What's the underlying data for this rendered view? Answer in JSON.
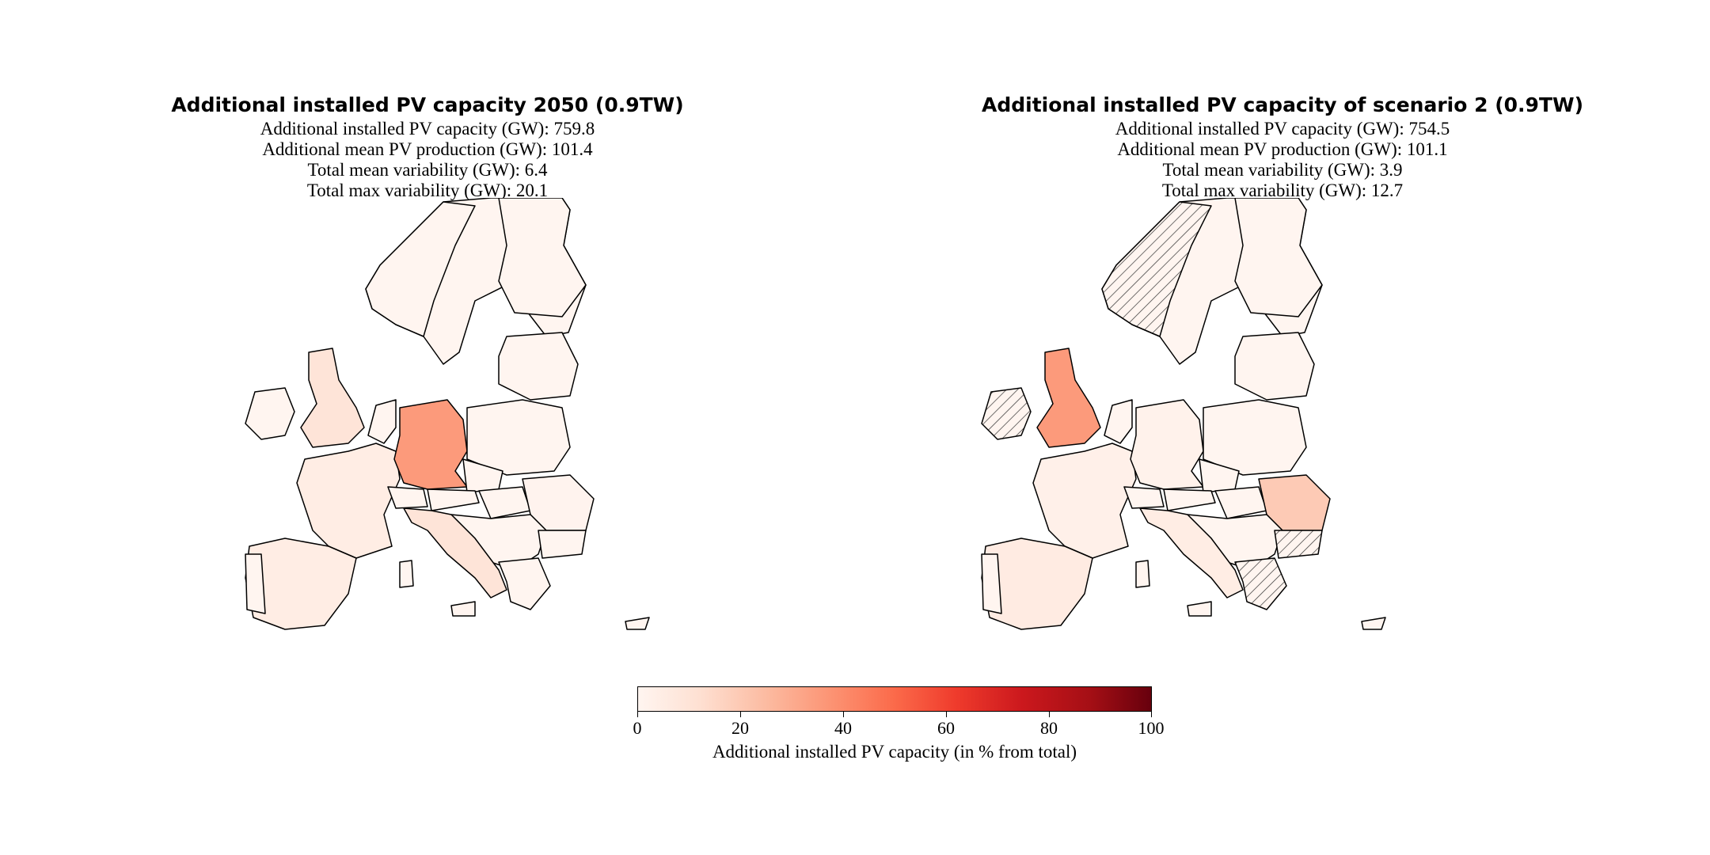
{
  "maps": [
    {
      "title": "Additional installed PV capacity 2050 (0.9TW)",
      "stats": [
        "Additional installed PV capacity (GW): 759.8",
        "Additional mean PV production (GW): 101.4",
        "Total mean variability (GW): 6.4",
        "Total max variability (GW): 20.1"
      ],
      "highlight": {
        "germany": 35,
        "uk": 10,
        "italy": 10,
        "spain": 5,
        "france": 5,
        "romania": 1
      }
    },
    {
      "title": "Additional installed PV capacity of scenario 2 (0.9TW)",
      "stats": [
        "Additional installed PV capacity (GW): 754.5",
        "Additional mean PV production (GW): 101.1",
        "Total mean variability (GW): 3.9",
        "Total max variability (GW): 12.7"
      ],
      "highlight": {
        "germany": 2,
        "uk": 35,
        "italy": 5,
        "spain": 6,
        "france": 3,
        "romania": 20
      },
      "hatched_regions": [
        "norway",
        "ireland",
        "bulgaria",
        "greece",
        "moldova"
      ]
    }
  ],
  "colorbar": {
    "label": "Additional installed PV capacity (in % from total)",
    "ticks": [
      "0",
      "20",
      "40",
      "60",
      "80",
      "100"
    ],
    "colormap": "Reds",
    "range": [
      0,
      100
    ]
  },
  "colors": {
    "ramp": [
      "#fff5f0",
      "#fee0d2",
      "#fcbba1",
      "#fc9272",
      "#fb6a4a",
      "#ef3b2c",
      "#cb181d",
      "#a50f15",
      "#67000d"
    ]
  }
}
